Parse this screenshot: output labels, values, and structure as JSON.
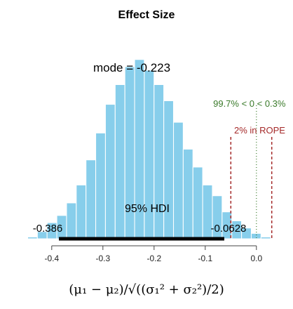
{
  "chart_data": {
    "type": "bar",
    "title": "Effect Size",
    "xlabel": "(μ₁ − μ₂)/√((σ₁² + σ₂²)/2)",
    "ylabel": "",
    "xlim": [
      -0.46,
      0.04
    ],
    "ylim": [
      0,
      105
    ],
    "xticks": [
      -0.4,
      -0.3,
      -0.2,
      -0.1,
      0.0
    ],
    "xtick_labels": [
      "-0.4",
      "-0.3",
      "-0.2",
      "-0.1",
      "0.0"
    ],
    "bin_width": 0.0189,
    "bins": [
      {
        "x0": -0.447,
        "count": 1
      },
      {
        "x0": -0.428,
        "count": 4
      },
      {
        "x0": -0.409,
        "count": 9
      },
      {
        "x0": -0.39,
        "count": 13
      },
      {
        "x0": -0.371,
        "count": 20
      },
      {
        "x0": -0.352,
        "count": 30
      },
      {
        "x0": -0.333,
        "count": 44
      },
      {
        "x0": -0.314,
        "count": 59
      },
      {
        "x0": -0.295,
        "count": 75
      },
      {
        "x0": -0.276,
        "count": 86
      },
      {
        "x0": -0.257,
        "count": 96
      },
      {
        "x0": -0.238,
        "count": 100
      },
      {
        "x0": -0.219,
        "count": 94
      },
      {
        "x0": -0.2,
        "count": 86
      },
      {
        "x0": -0.181,
        "count": 77
      },
      {
        "x0": -0.162,
        "count": 65
      },
      {
        "x0": -0.143,
        "count": 50
      },
      {
        "x0": -0.124,
        "count": 40
      },
      {
        "x0": -0.105,
        "count": 30
      },
      {
        "x0": -0.086,
        "count": 24
      },
      {
        "x0": -0.067,
        "count": 15
      },
      {
        "x0": -0.048,
        "count": 10
      },
      {
        "x0": -0.029,
        "count": 6
      },
      {
        "x0": -0.01,
        "count": 3
      },
      {
        "x0": 0.009,
        "count": 1
      }
    ],
    "bar_color": "#87ceeb",
    "mode": {
      "value": -0.223,
      "label": "mode = -0.223"
    },
    "hdi": {
      "low": -0.386,
      "high": -0.0628,
      "label": "95% HDI",
      "low_label": "-0.386",
      "high_label": "-0.0628"
    },
    "comparison": {
      "value": 0.0,
      "label": "99.7% < 0 < 0.3%",
      "color": "#3a7a2a"
    },
    "rope": {
      "low": -0.05,
      "high": 0.03,
      "label": "2% in ROPE",
      "color": "#a52a2a"
    }
  }
}
